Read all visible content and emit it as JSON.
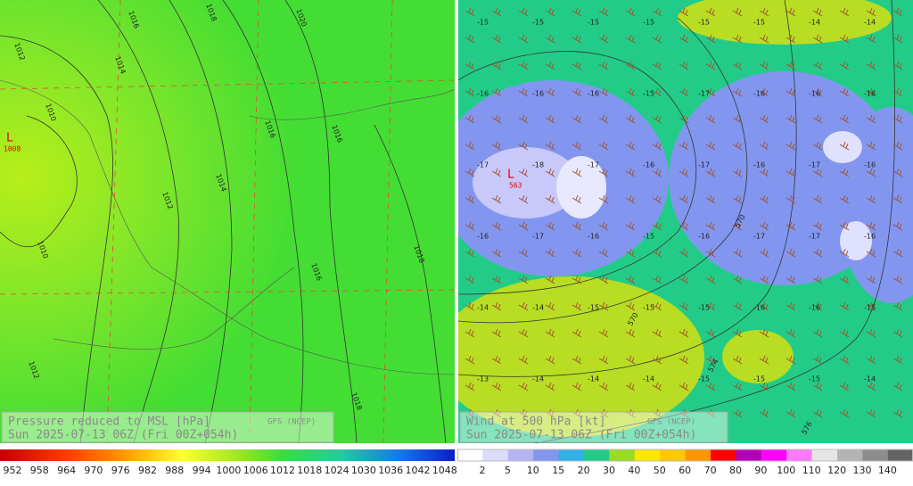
{
  "left_panel": {
    "title": "Pressure reduced to MSL [hPa]",
    "source": "GFS (NCEP)",
    "valid": "Sun 2025-07-13 06Z (Fri 00Z+054h)",
    "low": {
      "symbol": "L",
      "value": "1008"
    },
    "isobar_labels": [
      "1016",
      "1018",
      "1020",
      "1012",
      "1014",
      "1010",
      "1016",
      "1016",
      "1012",
      "1014",
      "1010",
      "1016",
      "1018",
      "1012",
      "1018"
    ]
  },
  "right_panel": {
    "title": "Wind at 500 hPa [kt]",
    "source": "GFS (NCEP)",
    "valid": "Sun 2025-07-13 06Z (Fri 00Z+054h)",
    "low": {
      "symbol": "L",
      "value": "563"
    },
    "height_labels": [
      "570",
      "570",
      "574",
      "576"
    ],
    "temperature_labels": [
      "-15",
      "-15",
      "-15",
      "-15",
      "-15",
      "-15",
      "-14",
      "-14",
      "-16",
      "-16",
      "-16",
      "-15",
      "-17",
      "-16",
      "-16",
      "-16",
      "-17",
      "-18",
      "-17",
      "-16",
      "-17",
      "-16",
      "-17",
      "-16",
      "-16",
      "-17",
      "-16",
      "-15",
      "-16",
      "-17",
      "-17",
      "-16",
      "-14",
      "-14",
      "-15",
      "-15",
      "-15",
      "-16",
      "-16",
      "-15",
      "-13",
      "-14",
      "-14",
      "-14",
      "-15",
      "-15",
      "-15",
      "-14"
    ]
  },
  "left_colorbar": {
    "labels": [
      "952",
      "958",
      "964",
      "970",
      "976",
      "982",
      "988",
      "994",
      "1000",
      "1006",
      "1012",
      "1018",
      "1024",
      "1030",
      "1036",
      "1042",
      "1048"
    ]
  },
  "right_colorbar": {
    "labels": [
      "2",
      "5",
      "10",
      "15",
      "20",
      "30",
      "40",
      "50",
      "60",
      "70",
      "80",
      "90",
      "100",
      "110",
      "120",
      "130",
      "140"
    ]
  }
}
